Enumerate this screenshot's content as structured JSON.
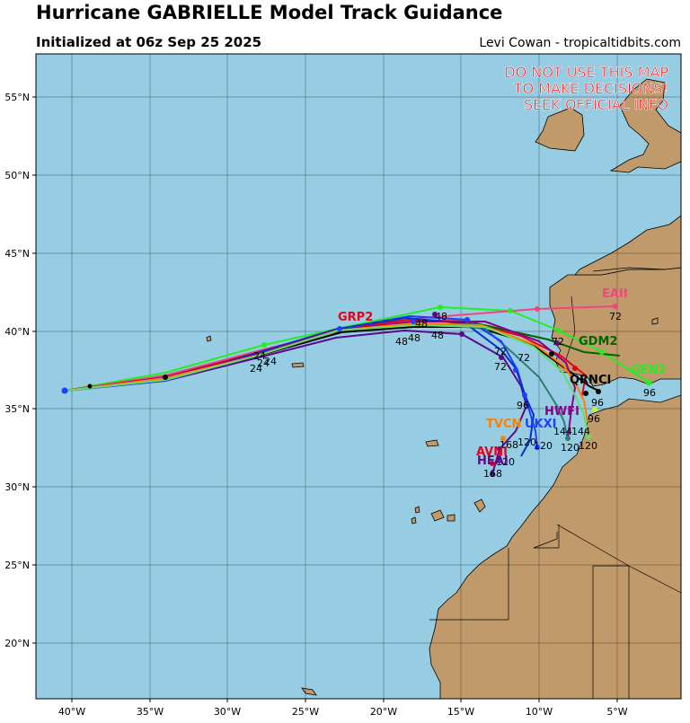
{
  "header": {
    "title": "Hurricane GABRIELLE Model Track Guidance",
    "subtitle": "Initialized at 06z Sep 25 2025",
    "credit": "Levi Cowan - tropicaltidbits.com"
  },
  "warning": {
    "line1": "DO NOT USE THIS MAP",
    "line2": "TO MAKE DECISIONS!",
    "line3": "SEEK OFFICIAL INFO"
  },
  "axes": {
    "lat_ticks": [
      "55°N",
      "50°N",
      "45°N",
      "40°N",
      "35°N",
      "30°N",
      "25°N",
      "20°N"
    ],
    "lon_ticks": [
      "40°W",
      "35°W",
      "30°W",
      "25°W",
      "20°W",
      "15°W",
      "10°W",
      "5°W"
    ]
  },
  "colors": {
    "ocean": "#96cde3",
    "land": "#c09a6b",
    "grid": "#000000"
  },
  "model_labels": [
    {
      "name": "GRP2",
      "color": "#e8001c"
    },
    {
      "name": "EAII",
      "color": "#f0467c"
    },
    {
      "name": "GDM2",
      "color": "#006400"
    },
    {
      "name": "GEN2",
      "color": "#22ee22"
    },
    {
      "name": "QRNCI",
      "color": "#000000"
    },
    {
      "name": "AVNI",
      "color": "#e8001c"
    },
    {
      "name": "HEAI",
      "color": "#5a0a8a"
    },
    {
      "name": "TVCN",
      "color": "#ff7f00"
    },
    {
      "name": "UKXI",
      "color": "#1f3fff"
    },
    {
      "name": "HWFI",
      "color": "#8b008b"
    }
  ],
  "hour_labels": [
    "24",
    "48",
    "72",
    "96",
    "120",
    "144",
    "168"
  ]
}
